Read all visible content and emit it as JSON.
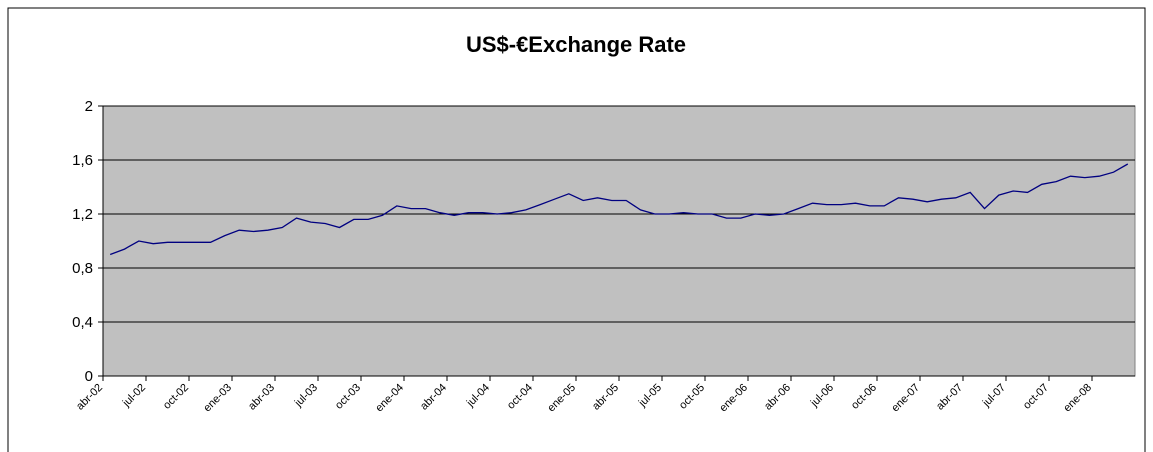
{
  "chart_data": {
    "type": "line",
    "title": "US$-€Exchange Rate",
    "categories": [
      "abr-02",
      null,
      null,
      "jul-02",
      null,
      null,
      "oct-02",
      null,
      null,
      "ene-03",
      null,
      null,
      "abr-03",
      null,
      null,
      "jul-03",
      null,
      null,
      "oct-03",
      null,
      null,
      "ene-04",
      null,
      null,
      "abr-04",
      null,
      null,
      "jul-04",
      null,
      null,
      "oct-04",
      null,
      null,
      "ene-05",
      null,
      null,
      "abr-05",
      null,
      null,
      "jul-05",
      null,
      null,
      "oct-05",
      null,
      null,
      "ene-06",
      null,
      null,
      "abr-06",
      null,
      null,
      "jul-06",
      null,
      null,
      "oct-06",
      null,
      null,
      "ene-07",
      null,
      null,
      "abr-07",
      null,
      null,
      "jul-07",
      null,
      null,
      "oct-07",
      null,
      null,
      "ene-08",
      null,
      null
    ],
    "values": [
      0.9,
      0.94,
      1.0,
      0.98,
      0.99,
      0.99,
      0.99,
      0.99,
      1.04,
      1.08,
      1.07,
      1.08,
      1.1,
      1.17,
      1.14,
      1.13,
      1.1,
      1.16,
      1.16,
      1.19,
      1.26,
      1.24,
      1.24,
      1.21,
      1.19,
      1.21,
      1.21,
      1.2,
      1.21,
      1.23,
      1.27,
      1.31,
      1.35,
      1.3,
      1.32,
      1.3,
      1.3,
      1.23,
      1.2,
      1.2,
      1.21,
      1.2,
      1.2,
      1.17,
      1.17,
      1.2,
      1.19,
      1.2,
      1.24,
      1.28,
      1.27,
      1.27,
      1.28,
      1.26,
      1.26,
      1.32,
      1.31,
      1.29,
      1.31,
      1.32,
      1.36,
      1.24,
      1.34,
      1.37,
      1.36,
      1.42,
      1.44,
      1.48,
      1.47,
      1.48,
      1.51,
      1.57
    ],
    "color": "#000080",
    "ylim": [
      0,
      2
    ],
    "yticks": [
      0,
      {
        "value": 0.4,
        "label": "0,4"
      },
      {
        "value": 0.8,
        "label": "0,8"
      },
      {
        "value": 1.2,
        "label": "1,2"
      },
      {
        "value": 1.6,
        "label": "1,6"
      },
      2
    ],
    "grid": true
  }
}
